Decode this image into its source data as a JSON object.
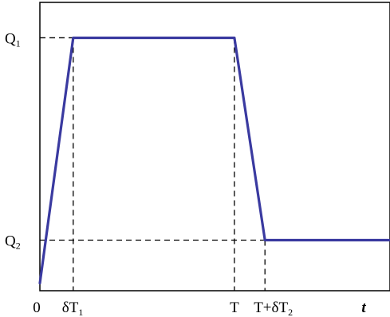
{
  "chart_data": {
    "type": "line",
    "title": "",
    "xlabel": "t",
    "ylabel": "",
    "xlim": [
      0,
      1.26
    ],
    "ylim": [
      0,
      1.14
    ],
    "grid": false,
    "series": [
      {
        "color": "#3a3aa0",
        "x": [
          0,
          0.12,
          0.7,
          0.81,
          1.26
        ],
        "y": [
          0.03,
          1,
          1,
          0.2,
          0.2
        ]
      }
    ],
    "guides": {
      "vertical": [
        {
          "x": 0.12,
          "y_top": 1.0
        },
        {
          "x": 0.7,
          "y_top": 1.0
        },
        {
          "x": 0.81,
          "y_top": 0.2
        }
      ],
      "horizontal": [
        {
          "y": 1.0,
          "x_right": 0.12
        },
        {
          "y": 0.2,
          "x_right": 1.26
        }
      ]
    },
    "x_ticks": [
      {
        "x": 0,
        "label": "0",
        "sub": ""
      },
      {
        "x": 0.12,
        "label": "δT",
        "sub": "1"
      },
      {
        "x": 0.7,
        "label": "T",
        "sub": ""
      },
      {
        "x": 0.81,
        "label": "T+δT",
        "sub": "2"
      }
    ],
    "y_ticks": [
      {
        "y": 1.0,
        "label": "Q",
        "sub": "1"
      },
      {
        "y": 0.2,
        "label": "Q",
        "sub": "2"
      }
    ]
  }
}
